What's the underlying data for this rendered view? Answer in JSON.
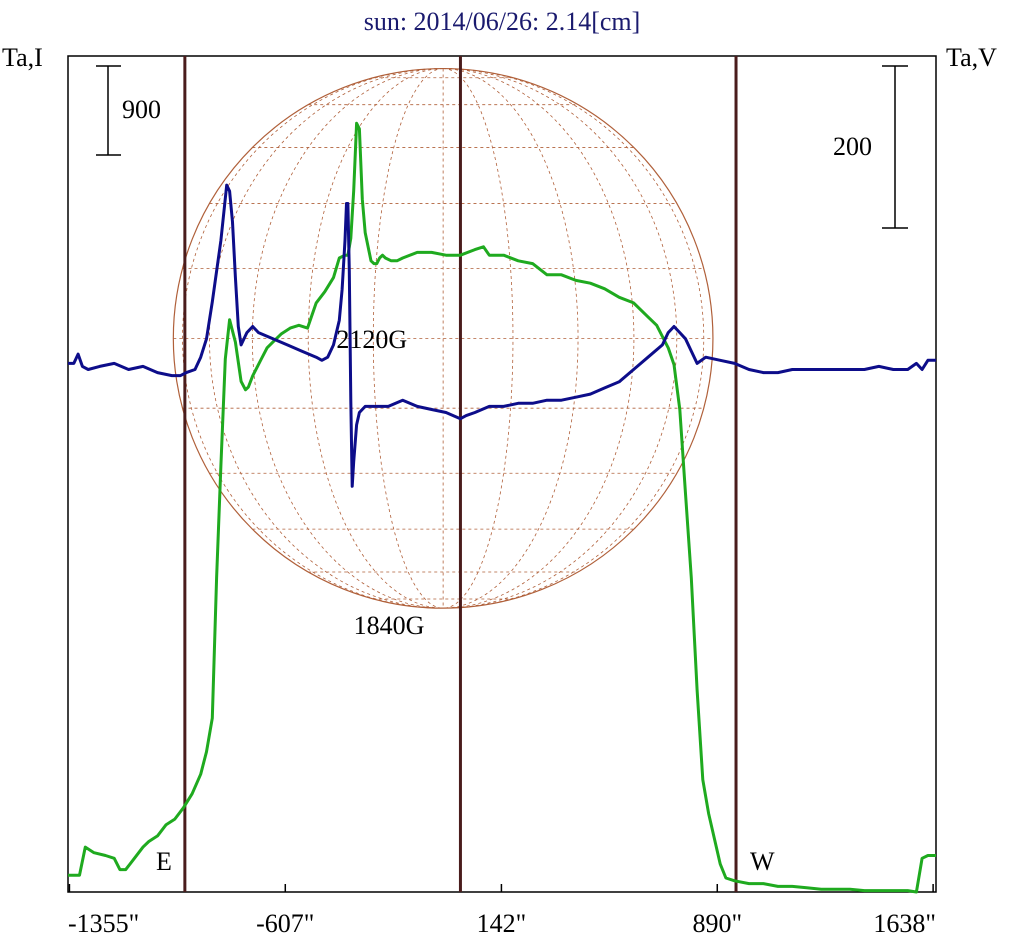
{
  "chart_data": {
    "type": "line",
    "title": "sun: 2014/06/26: 2.14[cm]",
    "ylabel_left": "Ta,I",
    "ylabel_right": "Ta,V",
    "scale_bar_left": "900",
    "scale_bar_right": "200",
    "x_ticks": [
      {
        "label": "-1355\"",
        "value": -1355
      },
      {
        "label": "-607\"",
        "value": -607
      },
      {
        "label": "142\"",
        "value": 142
      },
      {
        "label": "890\"",
        "value": 890
      },
      {
        "label": "1638\"",
        "value": 1638
      }
    ],
    "xlim": [
      -1360,
      1648
    ],
    "ylim_I": [
      -220,
      2760
    ],
    "ylim_V": [
      -860,
      500
    ],
    "vertical_markers": [
      -955,
      0,
      955
    ],
    "solar_disk": {
      "center_x": -60,
      "radius_arcsec": 935
    },
    "limb_labels": {
      "east": "E",
      "west": "W"
    },
    "annotations": [
      {
        "text": "2120G",
        "x": -430,
        "y_I": 1720
      },
      {
        "text": "1840G",
        "x": -370,
        "y_I": 700
      }
    ],
    "colors": {
      "intensity": "#1faa1f",
      "polarization": "#0d0d8a",
      "disk": "#b0603a",
      "markers": "#4a1c1c",
      "title": "#1a1a6e"
    },
    "series": [
      {
        "name": "I",
        "axis": "left",
        "x": [
          -1360,
          -1320,
          -1300,
          -1270,
          -1230,
          -1200,
          -1180,
          -1160,
          -1130,
          -1100,
          -1080,
          -1050,
          -1020,
          -990,
          -960,
          -930,
          -900,
          -880,
          -860,
          -845,
          -830,
          -815,
          -800,
          -780,
          -760,
          -745,
          -735,
          -720,
          -705,
          -690,
          -670,
          -650,
          -620,
          -590,
          -560,
          -530,
          -500,
          -470,
          -440,
          -420,
          -400,
          -390,
          -380,
          -370,
          -360,
          -350,
          -340,
          -330,
          -320,
          -310,
          -300,
          -290,
          -280,
          -270,
          -260,
          -240,
          -220,
          -200,
          -150,
          -100,
          -50,
          0,
          50,
          80,
          100,
          150,
          200,
          250,
          300,
          350,
          400,
          450,
          500,
          550,
          600,
          650,
          680,
          700,
          720,
          740,
          760,
          780,
          800,
          820,
          840,
          860,
          880,
          900,
          920,
          950,
          1000,
          1050,
          1100,
          1150,
          1200,
          1250,
          1300,
          1350,
          1400,
          1450,
          1500,
          1550,
          1580,
          1600,
          1620,
          1648
        ],
        "y": [
          -160,
          -160,
          -60,
          -80,
          -90,
          -100,
          -140,
          -140,
          -100,
          -60,
          -40,
          -20,
          20,
          40,
          80,
          130,
          200,
          280,
          400,
          900,
          1300,
          1680,
          1820,
          1740,
          1600,
          1570,
          1580,
          1620,
          1650,
          1680,
          1720,
          1740,
          1770,
          1790,
          1800,
          1790,
          1880,
          1920,
          1970,
          2040,
          2050,
          2050,
          2110,
          2280,
          2520,
          2500,
          2250,
          2130,
          2080,
          2030,
          2020,
          2020,
          2040,
          2050,
          2040,
          2030,
          2030,
          2040,
          2060,
          2060,
          2050,
          2050,
          2070,
          2080,
          2050,
          2050,
          2030,
          2020,
          1980,
          1980,
          1960,
          1950,
          1930,
          1900,
          1880,
          1830,
          1800,
          1760,
          1720,
          1660,
          1500,
          1200,
          900,
          500,
          180,
          60,
          -30,
          -120,
          -170,
          -180,
          -190,
          -190,
          -200,
          -200,
          -205,
          -210,
          -210,
          -210,
          -215,
          -215,
          -215,
          -215,
          -220,
          -100,
          -90,
          -90
        ]
      },
      {
        "name": "V",
        "axis": "right",
        "x": [
          -1360,
          -1340,
          -1325,
          -1310,
          -1290,
          -1250,
          -1200,
          -1150,
          -1100,
          -1050,
          -1000,
          -970,
          -950,
          -920,
          -900,
          -880,
          -860,
          -830,
          -810,
          -800,
          -790,
          -780,
          -770,
          -760,
          -740,
          -720,
          -700,
          -650,
          -600,
          -550,
          -500,
          -480,
          -460,
          -440,
          -420,
          -410,
          -400,
          -395,
          -390,
          -385,
          -380,
          -375,
          -370,
          -360,
          -350,
          -330,
          -300,
          -250,
          -200,
          -150,
          -100,
          -50,
          0,
          20,
          50,
          100,
          150,
          200,
          250,
          300,
          350,
          400,
          450,
          500,
          550,
          600,
          650,
          700,
          720,
          740,
          760,
          780,
          800,
          820,
          850,
          900,
          950,
          1000,
          1050,
          1100,
          1150,
          1200,
          1250,
          1300,
          1350,
          1400,
          1450,
          1500,
          1550,
          1580,
          1600,
          1620,
          1648
        ],
        "y": [
          0,
          0,
          15,
          -5,
          -10,
          -5,
          0,
          -10,
          -5,
          -15,
          -20,
          -20,
          -15,
          -10,
          10,
          40,
          100,
          200,
          290,
          280,
          230,
          140,
          60,
          30,
          50,
          60,
          50,
          40,
          30,
          20,
          10,
          5,
          10,
          30,
          70,
          120,
          200,
          260,
          260,
          150,
          -60,
          -200,
          -160,
          -100,
          -80,
          -70,
          -70,
          -70,
          -60,
          -70,
          -75,
          -80,
          -90,
          -85,
          -80,
          -70,
          -70,
          -65,
          -65,
          -60,
          -60,
          -55,
          -50,
          -40,
          -30,
          -10,
          10,
          30,
          50,
          60,
          50,
          40,
          20,
          0,
          10,
          5,
          0,
          -10,
          -15,
          -15,
          -10,
          -10,
          -10,
          -10,
          -10,
          -10,
          -5,
          -10,
          -10,
          0,
          -10,
          5,
          5
        ]
      }
    ]
  }
}
